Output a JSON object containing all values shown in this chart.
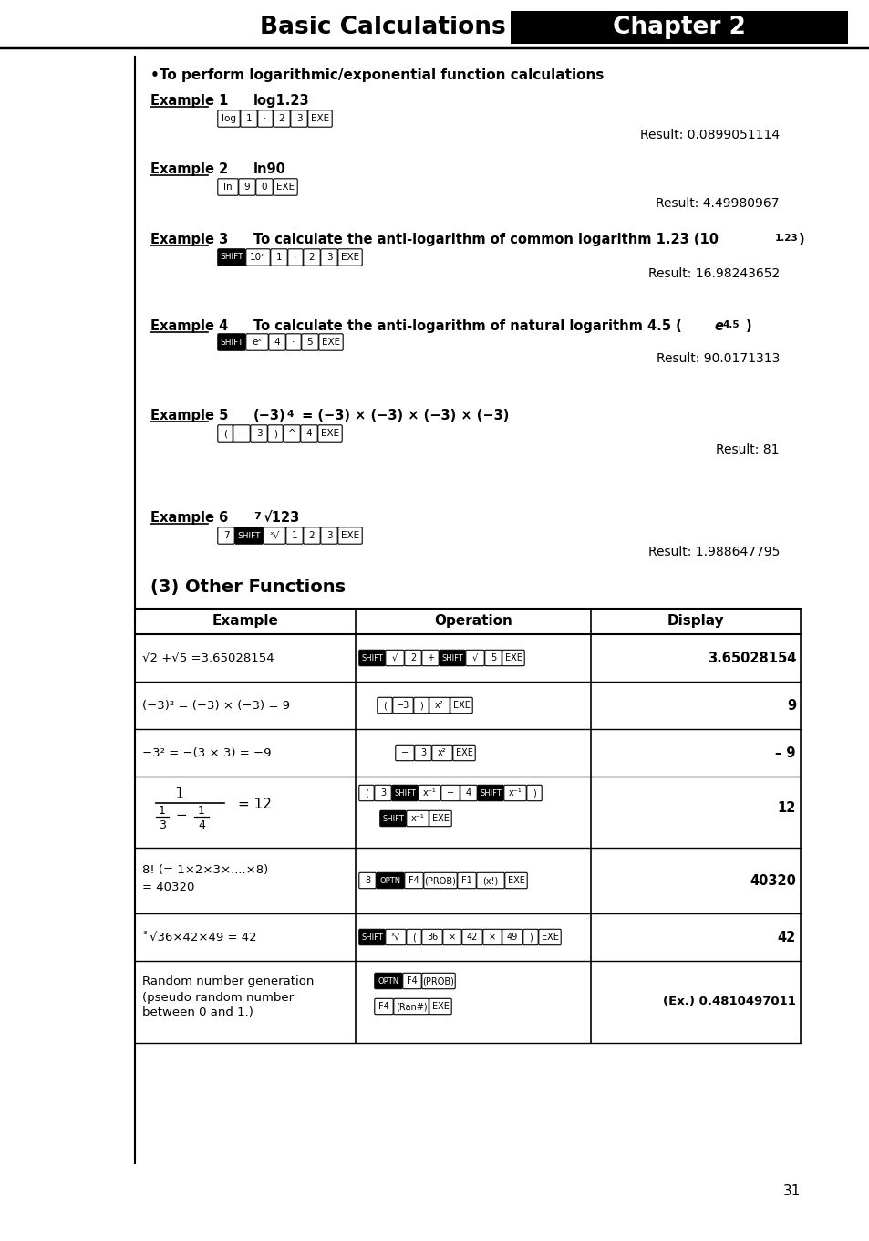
{
  "title_left": "Basic Calculations",
  "title_right": "Chapter 2",
  "bullet_section": "•To perform logarithmic/exponential function calculations",
  "page_number": "31",
  "bg_color": "#ffffff"
}
